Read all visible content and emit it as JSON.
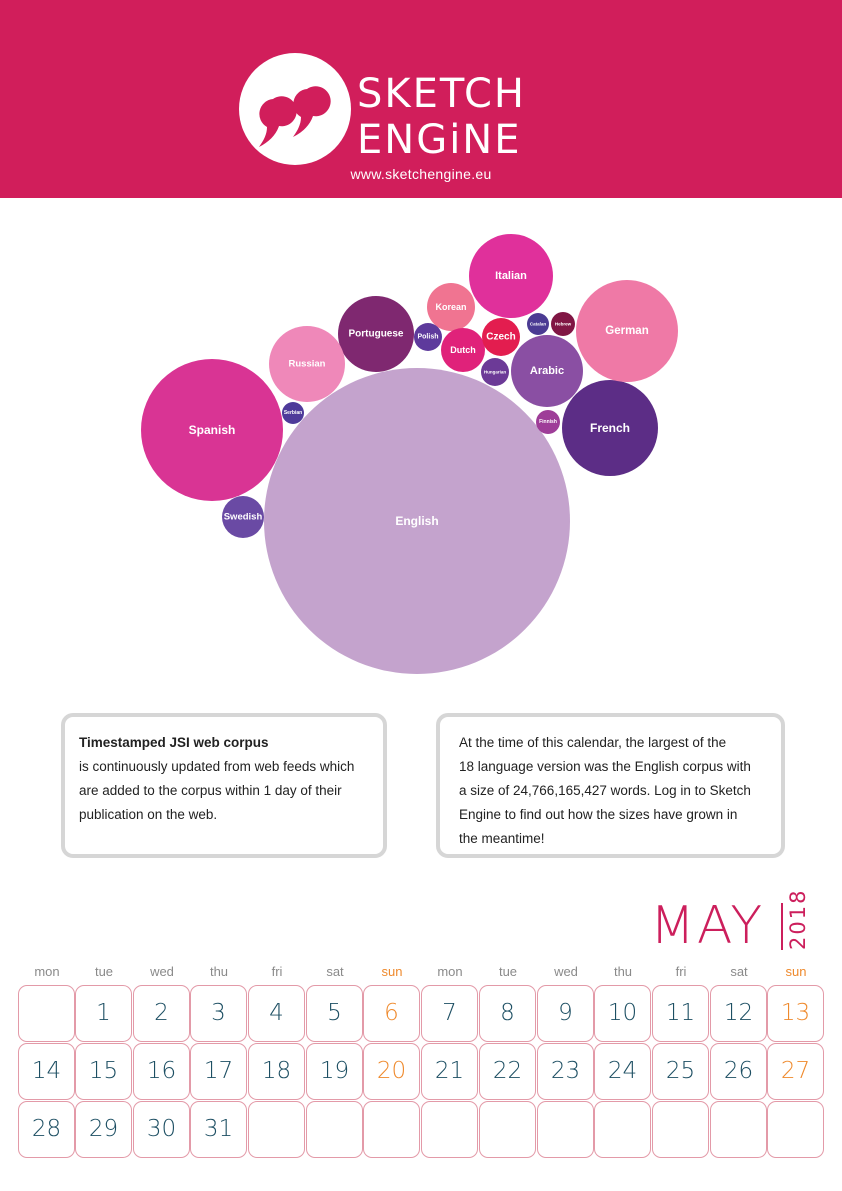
{
  "brand": {
    "name_line1": "SKETCH",
    "name_line2": "ENGiNE",
    "url": "www.sketchengine.eu",
    "color": "#d11e5b"
  },
  "bubble_chart": {
    "bubbles": [
      {
        "label": "English",
        "color": "#c4a3cd"
      },
      {
        "label": "Spanish",
        "color": "#d93494"
      },
      {
        "label": "French",
        "color": "#5c2d86"
      },
      {
        "label": "German",
        "color": "#ef79a6"
      },
      {
        "label": "Italian",
        "color": "#e0309b"
      },
      {
        "label": "Arabic",
        "color": "#8a4fa3"
      },
      {
        "label": "Portuguese",
        "color": "#7f2870"
      },
      {
        "label": "Russian",
        "color": "#ef88b9"
      },
      {
        "label": "Korean",
        "color": "#f07491"
      },
      {
        "label": "Dutch",
        "color": "#e0227a"
      },
      {
        "label": "Czech",
        "color": "#e31d4f"
      },
      {
        "label": "Swedish",
        "color": "#6a4aa4"
      },
      {
        "label": "Polish",
        "color": "#5e3a9c"
      },
      {
        "label": "Hungarian",
        "color": "#6c3a97"
      },
      {
        "label": "Catalan",
        "color": "#4b3b93"
      },
      {
        "label": "Hebrew",
        "color": "#801644"
      },
      {
        "label": "Serbian",
        "color": "#4e3a9a"
      },
      {
        "label": "Finnish",
        "color": "#9e3d98"
      }
    ]
  },
  "info_left": {
    "title": "Timestamped JSI web corpus",
    "lines": [
      "is continuously updated from web feeds which",
      "are added to the corpus within 1 day of their",
      "publication on the web."
    ]
  },
  "info_right": {
    "lines": [
      "At the time of  this calendar, the largest of the",
      "18 language version was the English corpus with",
      "a size of 24,766,165,427 words. Log in to Sketch",
      "Engine to find out how the sizes have grown in",
      "the meantime!"
    ]
  },
  "calendar": {
    "month": "MAY",
    "year": "2018",
    "weekdays": [
      "mon",
      "tue",
      "wed",
      "thu",
      "fri",
      "sat",
      "sun",
      "mon",
      "tue",
      "wed",
      "thu",
      "fri",
      "sat",
      "sun"
    ],
    "rows": [
      [
        "",
        "1",
        "2",
        "3",
        "4",
        "5",
        "6",
        "7",
        "8",
        "9",
        "10",
        "11",
        "12",
        "13"
      ],
      [
        "14",
        "15",
        "16",
        "17",
        "18",
        "19",
        "20",
        "21",
        "22",
        "23",
        "24",
        "25",
        "26",
        "27"
      ],
      [
        "28",
        "29",
        "30",
        "31",
        "",
        "",
        "",
        "",
        "",
        "",
        "",
        "",
        "",
        ""
      ]
    ],
    "accent_sunday": "#ef8a2d",
    "accent_month": "#cc1f5c"
  }
}
